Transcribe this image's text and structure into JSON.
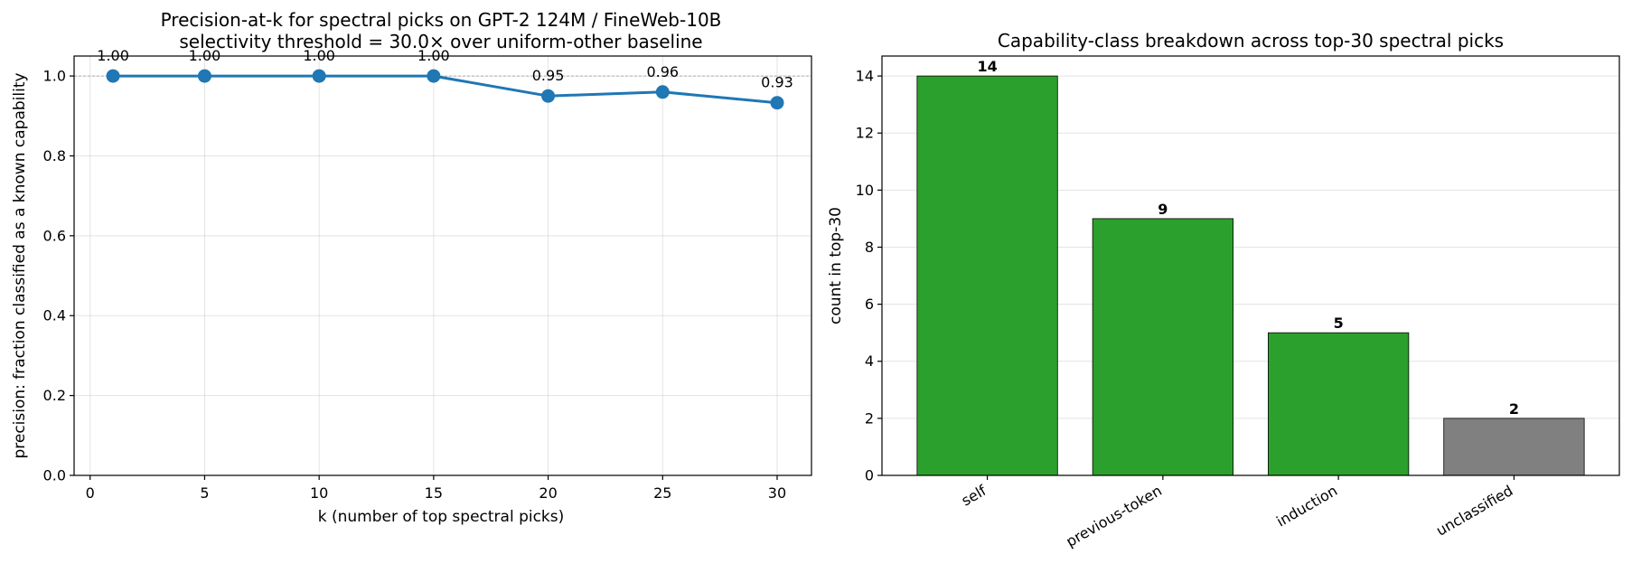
{
  "chart_data": [
    {
      "type": "line",
      "title": "Precision-at-k for spectral picks on GPT-2 124M / FineWeb-10B",
      "subtitle": "selectivity threshold = 30.0× over uniform-other baseline",
      "xlabel": "k (number of top spectral picks)",
      "ylabel": "precision: fraction classified as a known capability",
      "xlim": [
        -0.7,
        31.5
      ],
      "ylim": [
        0,
        1.05
      ],
      "xticks": [
        0,
        5,
        10,
        15,
        20,
        25,
        30
      ],
      "yticks": [
        0.0,
        0.2,
        0.4,
        0.6,
        0.8,
        1.0
      ],
      "grid": true,
      "reference_line": 1.0,
      "color": "#1f77b4",
      "x": [
        1,
        5,
        10,
        15,
        20,
        25,
        30
      ],
      "y": [
        1.0,
        1.0,
        1.0,
        1.0,
        0.95,
        0.96,
        0.933
      ],
      "point_labels": [
        "1.00",
        "1.00",
        "1.00",
        "1.00",
        "0.95",
        "0.96",
        "0.93"
      ]
    },
    {
      "type": "bar",
      "title": "Capability-class breakdown across top-30 spectral picks",
      "xlabel": "",
      "ylabel": "count in top-30",
      "ylim": [
        0,
        14.7
      ],
      "yticks": [
        0,
        2,
        4,
        6,
        8,
        10,
        12,
        14
      ],
      "grid": true,
      "categories": [
        "self",
        "previous-token",
        "induction",
        "unclassified"
      ],
      "values": [
        14,
        9,
        5,
        2
      ],
      "value_labels": [
        "14",
        "9",
        "5",
        "2"
      ],
      "colors": [
        "#2ca02c",
        "#2ca02c",
        "#2ca02c",
        "#808080"
      ]
    }
  ]
}
